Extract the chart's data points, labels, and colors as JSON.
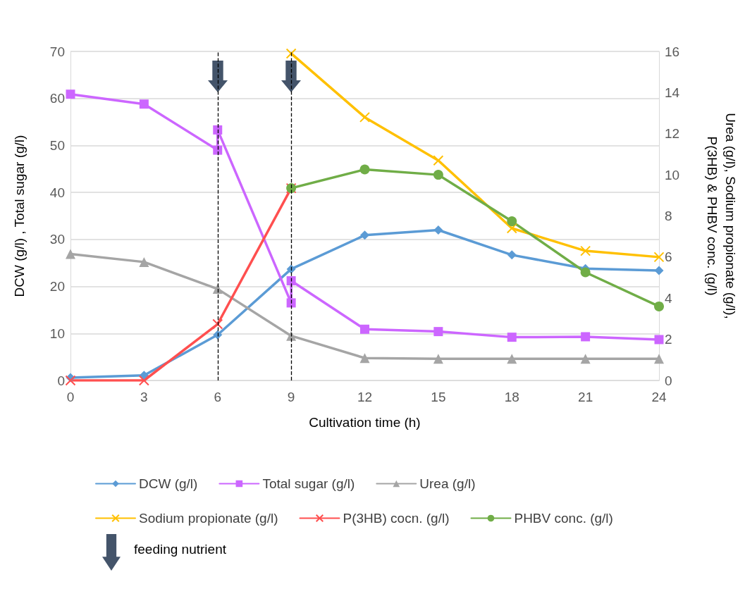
{
  "chart_data": {
    "type": "line",
    "xlabel": "Cultivation time (h)",
    "ylabel": "DCW (g/l) , Total sugar (g/l)",
    "y2label": "Urea (g/l), Sodium propionate (g/l),\nP(3HB) & PHBV conc. (g/l)",
    "xlim": [
      0,
      24
    ],
    "xticks": [
      0,
      3,
      6,
      9,
      12,
      15,
      18,
      21,
      24
    ],
    "ylim": [
      0,
      70
    ],
    "yticks": [
      0,
      10,
      20,
      30,
      40,
      50,
      60,
      70
    ],
    "y2lim": [
      0,
      16
    ],
    "y2ticks": [
      0,
      2,
      4,
      6,
      8,
      10,
      12,
      14,
      16
    ],
    "grid": "y",
    "legend": "bottom",
    "line_style": "solid",
    "series": [
      {
        "name": "DCW (g/l)",
        "color": "#5b9bd5",
        "marker": "diamond",
        "x": [
          0,
          3,
          6,
          9,
          12,
          15,
          18,
          21,
          24
        ],
        "values": [
          0.6,
          1.1,
          9.7,
          23.7,
          30.9,
          32.0,
          26.7,
          23.8,
          23.4
        ]
      },
      {
        "name": "Total sugar (g/l)",
        "color": "#cc66ff",
        "marker": "square",
        "x": [
          0,
          3,
          6,
          6,
          9,
          9,
          12,
          15,
          18,
          21,
          24
        ],
        "values": [
          60.9,
          58.8,
          49.0,
          53.3,
          16.5,
          21.2,
          10.9,
          10.4,
          9.2,
          9.3,
          8.7
        ]
      },
      {
        "name": "Urea (g/l)",
        "color": "#a5a5a5",
        "marker": "triangle",
        "axis": "y2",
        "x": [
          0,
          3,
          6,
          9,
          12,
          15,
          18,
          21,
          24
        ],
        "values": [
          6.15,
          5.76,
          4.45,
          2.17,
          1.09,
          1.05,
          1.05,
          1.05,
          1.05
        ]
      },
      {
        "name": "Sodium propionate (g/l)",
        "color": "#ffc000",
        "marker": "cross",
        "axis": "y2",
        "x": [
          9,
          12,
          15,
          18,
          21,
          24
        ],
        "values": [
          15.9,
          12.8,
          10.7,
          7.4,
          6.3,
          6.0
        ]
      },
      {
        "name": "P(3HB) cocn. (g/l)",
        "color": "#ff4f4f",
        "marker": "cross",
        "axis": "y2",
        "x": [
          0,
          3,
          6,
          9
        ],
        "values": [
          0,
          0,
          2.74,
          9.35
        ]
      },
      {
        "name": "PHBV conc. (g/l)",
        "color": "#70ad47",
        "marker": "circle",
        "axis": "y2",
        "x": [
          9,
          12,
          15,
          18,
          21,
          24
        ],
        "values": [
          9.35,
          10.26,
          10.0,
          7.74,
          5.26,
          3.6
        ]
      }
    ],
    "ref_lines": [
      {
        "axis": "x",
        "value": 6,
        "color": "#000000",
        "line_style": "dashed"
      },
      {
        "axis": "x",
        "value": 9,
        "color": "#000000",
        "line_style": "dashed"
      }
    ],
    "annotations": [
      "feeding nutrient"
    ]
  }
}
